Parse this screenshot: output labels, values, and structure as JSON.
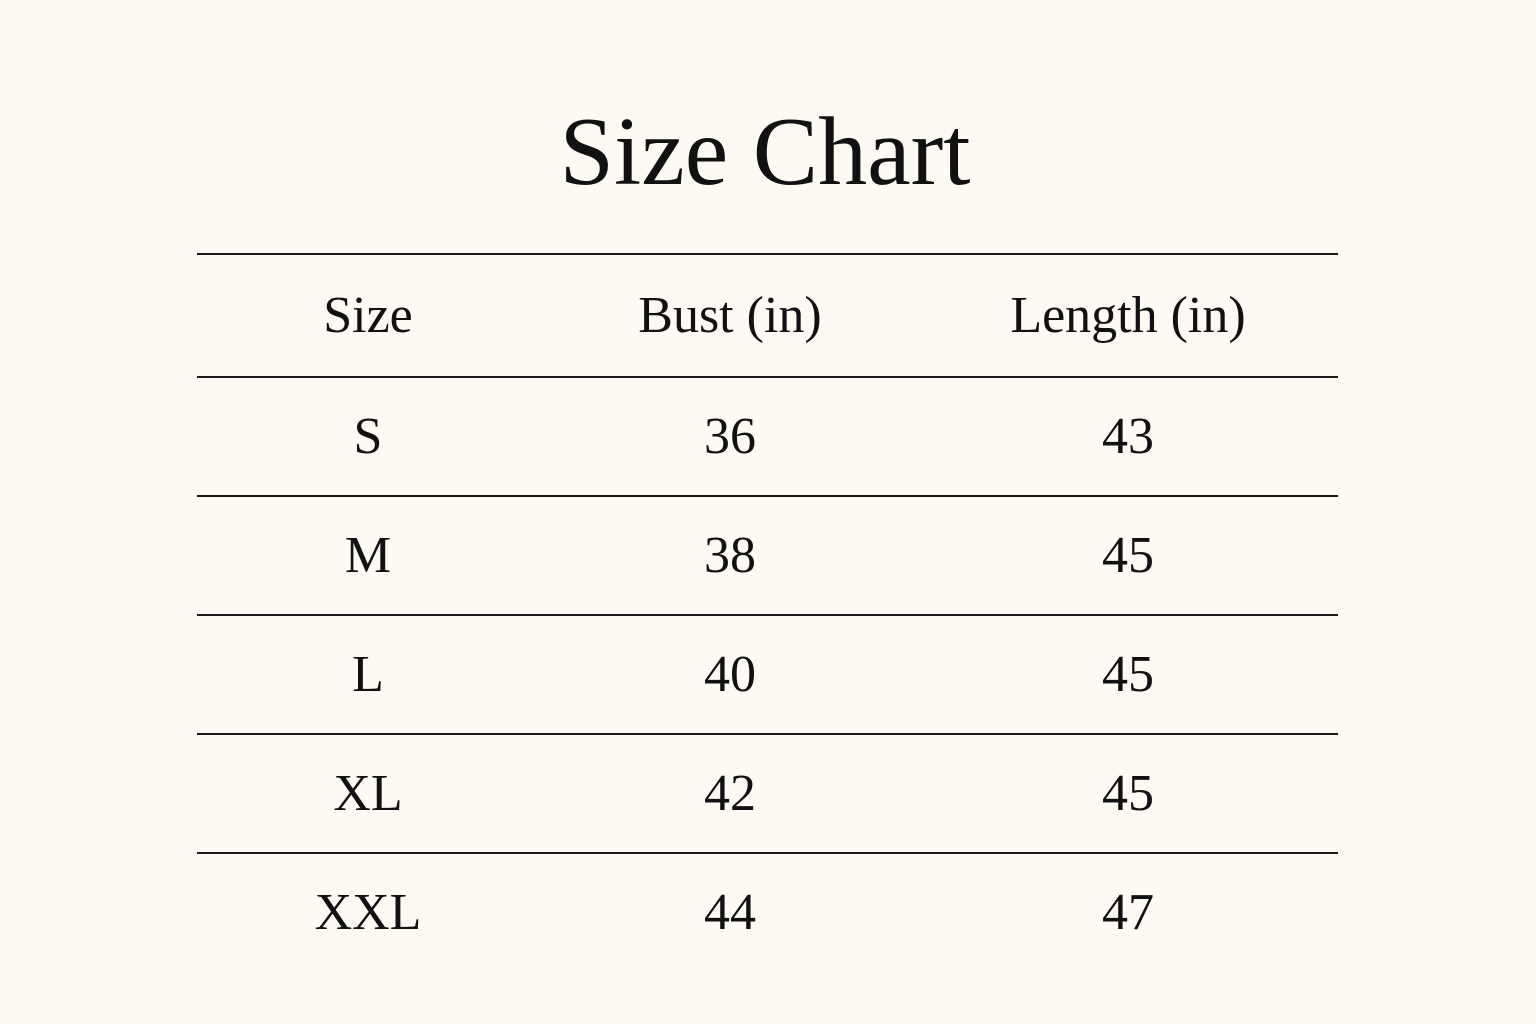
{
  "title": "Size Chart",
  "chart_data": {
    "type": "table",
    "columns": [
      "Size",
      "Bust (in)",
      "Length (in)"
    ],
    "rows": [
      [
        "S",
        "36",
        "43"
      ],
      [
        "M",
        "38",
        "45"
      ],
      [
        "L",
        "40",
        "45"
      ],
      [
        "XL",
        "42",
        "45"
      ],
      [
        "XXL",
        "44",
        "47"
      ]
    ]
  },
  "colors": {
    "background": "#fcfaf3",
    "text": "#111111",
    "rule": "#1a1a1a"
  }
}
